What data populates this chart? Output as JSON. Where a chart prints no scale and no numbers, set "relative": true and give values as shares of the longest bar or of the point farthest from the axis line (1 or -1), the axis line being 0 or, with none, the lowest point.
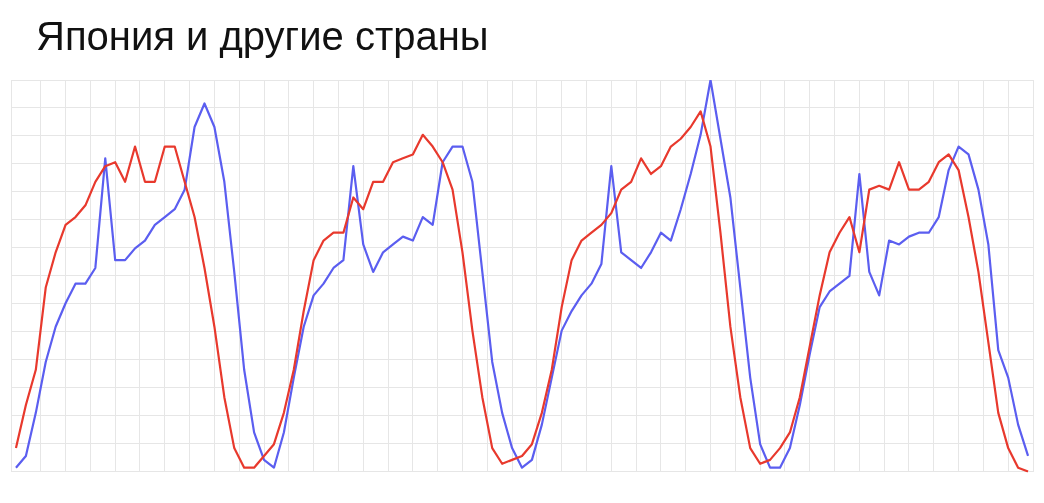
{
  "chart_data": {
    "type": "line",
    "title": "Япония и другие страны",
    "relative": true,
    "grid": true,
    "marker": "none",
    "line_style": "solid",
    "categories": [
      null,
      null,
      null,
      null,
      null,
      null,
      null,
      null,
      null,
      null,
      null,
      null,
      null,
      null,
      null,
      null,
      null,
      null,
      null,
      null,
      null,
      null,
      null,
      null,
      null,
      null,
      null,
      null,
      null,
      null,
      null,
      null,
      null,
      null,
      null,
      null,
      null,
      null,
      null,
      null,
      null,
      null,
      null,
      null,
      null,
      null,
      null,
      null,
      null,
      null,
      null,
      null,
      null,
      null,
      null,
      null,
      null,
      null,
      null,
      null,
      null,
      null,
      null,
      null,
      null,
      null,
      null,
      null,
      null,
      null,
      null,
      null,
      null,
      null,
      null,
      null,
      null,
      null,
      null,
      null,
      null,
      null,
      null,
      null,
      null,
      null,
      null,
      null,
      null,
      null,
      null,
      null,
      null,
      null,
      null,
      null,
      null,
      null,
      null,
      null,
      null,
      null,
      null
    ],
    "series": [
      {
        "color": "#e8392d",
        "values": [
          0.06,
          0.17,
          0.26,
          0.47,
          0.56,
          0.63,
          0.65,
          0.68,
          0.74,
          0.78,
          0.79,
          0.74,
          0.83,
          0.74,
          0.74,
          0.83,
          0.83,
          0.74,
          0.65,
          0.52,
          0.37,
          0.19,
          0.06,
          0.01,
          0.01,
          0.04,
          0.07,
          0.15,
          0.26,
          0.41,
          0.54,
          0.59,
          0.61,
          0.61,
          0.7,
          0.67,
          0.74,
          0.74,
          0.79,
          0.8,
          0.81,
          0.86,
          0.83,
          0.79,
          0.72,
          0.56,
          0.36,
          0.19,
          0.06,
          0.02,
          0.03,
          0.04,
          0.07,
          0.15,
          0.26,
          0.42,
          0.54,
          0.59,
          0.61,
          0.63,
          0.66,
          0.72,
          0.74,
          0.8,
          0.76,
          0.78,
          0.83,
          0.85,
          0.88,
          0.92,
          0.83,
          0.61,
          0.37,
          0.19,
          0.06,
          0.02,
          0.03,
          0.06,
          0.1,
          0.19,
          0.32,
          0.45,
          0.56,
          0.61,
          0.65,
          0.56,
          0.72,
          0.73,
          0.72,
          0.79,
          0.72,
          0.72,
          0.74,
          0.79,
          0.81,
          0.77,
          0.65,
          0.51,
          0.33,
          0.15,
          0.06,
          0.01,
          0
        ]
      },
      {
        "color": "#5b5ef0",
        "values": [
          0.01,
          0.04,
          0.15,
          0.28,
          0.37,
          0.43,
          0.48,
          0.48,
          0.52,
          0.8,
          0.54,
          0.54,
          0.57,
          0.59,
          0.63,
          0.65,
          0.67,
          0.72,
          0.88,
          0.94,
          0.88,
          0.74,
          0.51,
          0.26,
          0.1,
          0.03,
          0.01,
          0.1,
          0.24,
          0.37,
          0.45,
          0.48,
          0.52,
          0.54,
          0.78,
          0.58,
          0.51,
          0.56,
          0.58,
          0.6,
          0.59,
          0.65,
          0.63,
          0.79,
          0.83,
          0.83,
          0.74,
          0.51,
          0.28,
          0.15,
          0.06,
          0.01,
          0.03,
          0.12,
          0.24,
          0.36,
          0.41,
          0.45,
          0.48,
          0.53,
          0.78,
          0.56,
          0.54,
          0.52,
          0.56,
          0.61,
          0.59,
          0.67,
          0.76,
          0.86,
          1,
          0.85,
          0.7,
          0.47,
          0.24,
          0.07,
          0.01,
          0.01,
          0.06,
          0.17,
          0.3,
          0.42,
          0.46,
          0.48,
          0.5,
          0.76,
          0.51,
          0.45,
          0.59,
          0.58,
          0.6,
          0.61,
          0.61,
          0.65,
          0.77,
          0.83,
          0.81,
          0.72,
          0.58,
          0.31,
          0.24,
          0.12,
          0.04
        ]
      }
    ]
  }
}
